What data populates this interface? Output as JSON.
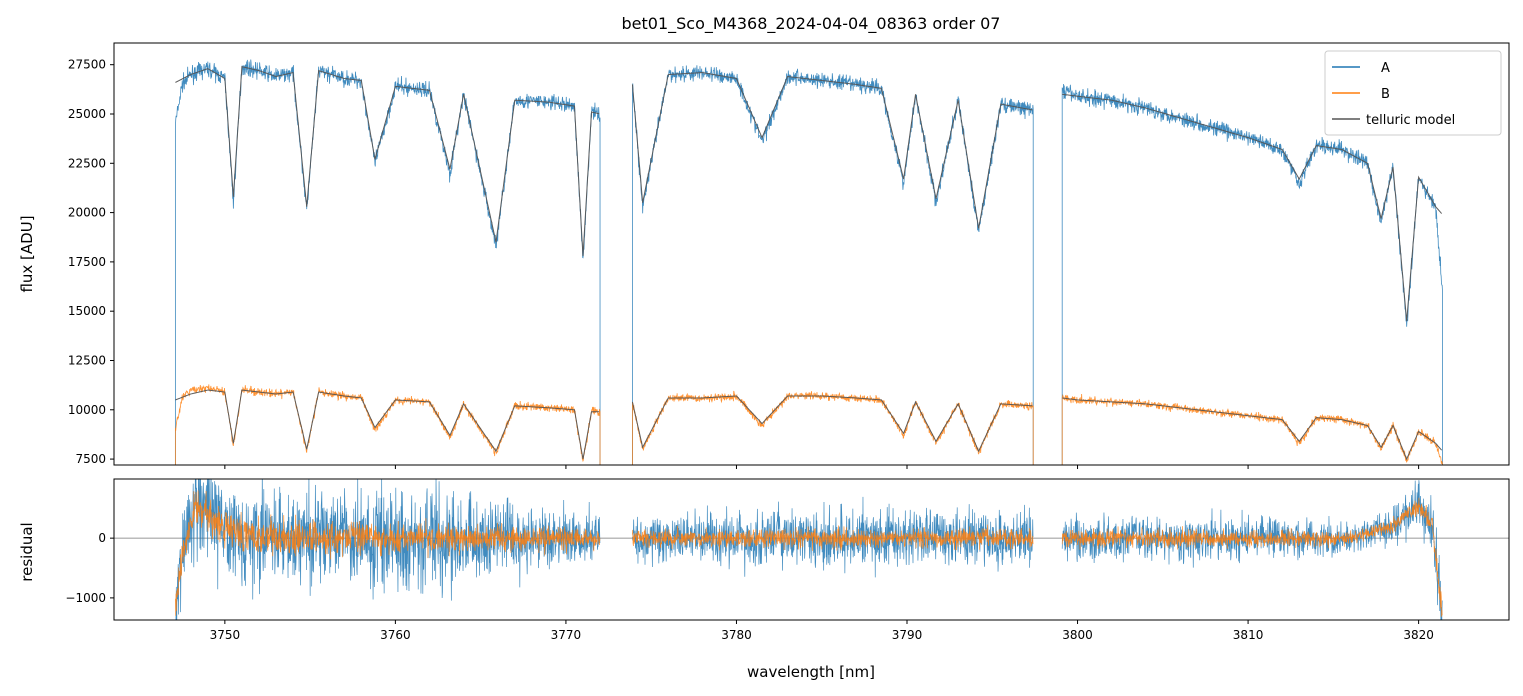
{
  "chart_data": [
    {
      "type": "line",
      "title": "bet01_Sco_M4368_2024-04-04_08363  order 07",
      "ylabel": "flux [ADU]",
      "ylim": [
        7200,
        28600
      ],
      "xlim": [
        3743.5,
        3825.3
      ],
      "yticks": [
        7500,
        10000,
        12500,
        15000,
        17500,
        20000,
        22500,
        25000,
        27500
      ],
      "ytick_labels": [
        "7500",
        "10000",
        "12500",
        "15000",
        "17500",
        "20000",
        "22500",
        "25000",
        "27500"
      ],
      "legend": {
        "placement": "top-right",
        "entries": [
          "A",
          "B",
          "telluric model"
        ]
      },
      "segments": [
        [
          3747.1,
          3772.0
        ],
        [
          3773.9,
          3797.4
        ],
        [
          3799.1,
          3821.4
        ]
      ],
      "series": [
        {
          "name": "A",
          "color": "#1f77b4",
          "x": [
            3747.1,
            3747.5,
            3748.0,
            3749.0,
            3750.0,
            3750.5,
            3751.0,
            3752.0,
            3753.0,
            3754.0,
            3754.8,
            3755.5,
            3757.0,
            3758.0,
            3758.8,
            3760.0,
            3762.0,
            3763.2,
            3764.0,
            3765.9,
            3767.0,
            3769.0,
            3770.5,
            3771.0,
            3771.5,
            3772.0,
            3773.9,
            3774.5,
            3776.0,
            3778.0,
            3780.0,
            3781.5,
            3783.0,
            3785.0,
            3787.0,
            3788.5,
            3789.8,
            3790.5,
            3791.7,
            3793.0,
            3794.2,
            3795.5,
            3797.4,
            3799.1,
            3800.0,
            3802.0,
            3804.0,
            3806.0,
            3808.0,
            3810.0,
            3812.0,
            3813.0,
            3814.0,
            3815.5,
            3817.0,
            3817.8,
            3818.5,
            3819.3,
            3820.0,
            3821.0,
            3821.4
          ],
          "y": [
            24500,
            26500,
            27000,
            27300,
            26800,
            20500,
            27400,
            27200,
            26900,
            27100,
            20100,
            27200,
            26800,
            26700,
            22500,
            26400,
            26200,
            22000,
            26000,
            18300,
            25700,
            25600,
            25400,
            17600,
            25100,
            25000,
            26500,
            20300,
            27000,
            27100,
            26800,
            23600,
            26900,
            26700,
            26500,
            26300,
            21500,
            26000,
            20500,
            25700,
            19000,
            25500,
            25200,
            26200,
            25900,
            25700,
            25300,
            24800,
            24300,
            23800,
            23200,
            21500,
            23400,
            23200,
            22500,
            19500,
            22300,
            14300,
            21800,
            20200,
            16000
          ]
        },
        {
          "name": "B",
          "color": "#ff7f0e",
          "x": [
            3747.1,
            3747.5,
            3748.0,
            3749.0,
            3750.0,
            3750.5,
            3751.0,
            3752.0,
            3753.0,
            3754.0,
            3754.8,
            3755.5,
            3757.0,
            3758.0,
            3758.8,
            3760.0,
            3762.0,
            3763.2,
            3764.0,
            3765.9,
            3767.0,
            3769.0,
            3770.5,
            3771.0,
            3771.5,
            3772.0,
            3773.9,
            3774.5,
            3776.0,
            3778.0,
            3780.0,
            3781.5,
            3783.0,
            3785.0,
            3787.0,
            3788.5,
            3789.8,
            3790.5,
            3791.7,
            3793.0,
            3794.2,
            3795.5,
            3797.4,
            3799.1,
            3800.0,
            3802.0,
            3804.0,
            3806.0,
            3808.0,
            3810.0,
            3812.0,
            3813.0,
            3814.0,
            3815.5,
            3817.0,
            3817.8,
            3818.5,
            3819.3,
            3820.0,
            3821.0,
            3821.4
          ],
          "y": [
            9000,
            10600,
            11000,
            11100,
            10900,
            8200,
            11000,
            10900,
            10800,
            10900,
            7900,
            10900,
            10700,
            10600,
            9000,
            10500,
            10400,
            8600,
            10300,
            7800,
            10200,
            10100,
            10000,
            7400,
            9900,
            9900,
            10400,
            8000,
            10600,
            10600,
            10700,
            9200,
            10700,
            10700,
            10600,
            10500,
            8700,
            10400,
            8300,
            10300,
            7800,
            10300,
            10200,
            10600,
            10500,
            10400,
            10300,
            10100,
            9900,
            9700,
            9500,
            8300,
            9600,
            9500,
            9200,
            8000,
            9200,
            7400,
            8900,
            8300,
            7300
          ]
        },
        {
          "name": "telluric model",
          "color": "#555555",
          "x": [
            3747.1,
            3748.0,
            3749.0,
            3750.0,
            3750.5,
            3751.0,
            3752.0,
            3753.0,
            3754.0,
            3754.8,
            3755.5,
            3757.0,
            3758.0,
            3758.8,
            3760.0,
            3762.0,
            3763.2,
            3764.0,
            3765.9,
            3767.0,
            3769.0,
            3770.5,
            3771.0,
            3771.5,
            3772.0,
            3773.9,
            3774.5,
            3776.0,
            3778.0,
            3780.0,
            3781.5,
            3783.0,
            3785.0,
            3787.0,
            3788.5,
            3789.8,
            3790.5,
            3791.7,
            3793.0,
            3794.2,
            3795.5,
            3797.4,
            3799.1,
            3800.0,
            3802.0,
            3804.0,
            3806.0,
            3808.0,
            3810.0,
            3812.0,
            3813.0,
            3814.0,
            3815.5,
            3817.0,
            3817.8,
            3818.5,
            3819.3,
            3820.0,
            3821.0,
            3821.4
          ],
          "y": [
            26600,
            27000,
            27300,
            26800,
            20800,
            27400,
            27200,
            26900,
            27100,
            20300,
            27200,
            26800,
            26700,
            22700,
            26400,
            26200,
            22200,
            26000,
            18500,
            25700,
            25600,
            25400,
            17800,
            25100,
            25000,
            26500,
            20500,
            27000,
            27100,
            26800,
            23800,
            26900,
            26700,
            26500,
            26300,
            21700,
            26000,
            20700,
            25700,
            19200,
            25500,
            25200,
            26000,
            25900,
            25700,
            25300,
            24800,
            24300,
            23800,
            23200,
            21700,
            23400,
            23200,
            22500,
            19700,
            22300,
            14500,
            21800,
            20300,
            19900
          ]
        },
        {
          "name": "",
          "color": "#555555",
          "x": [
            3747.1,
            3748.0,
            3749.0,
            3750.0,
            3750.5,
            3751.0,
            3752.0,
            3753.0,
            3754.0,
            3754.8,
            3755.5,
            3757.0,
            3758.0,
            3758.8,
            3760.0,
            3762.0,
            3763.2,
            3764.0,
            3765.9,
            3767.0,
            3769.0,
            3770.5,
            3771.0,
            3771.5,
            3772.0,
            3773.9,
            3774.5,
            3776.0,
            3778.0,
            3780.0,
            3781.5,
            3783.0,
            3785.0,
            3787.0,
            3788.5,
            3789.8,
            3790.5,
            3791.7,
            3793.0,
            3794.2,
            3795.5,
            3797.4,
            3799.1,
            3800.0,
            3802.0,
            3804.0,
            3806.0,
            3808.0,
            3810.0,
            3812.0,
            3813.0,
            3814.0,
            3815.5,
            3817.0,
            3817.8,
            3818.5,
            3819.3,
            3820.0,
            3821.0,
            3821.4
          ],
          "y": [
            10500,
            10800,
            11000,
            10900,
            8300,
            11000,
            10900,
            10800,
            10900,
            8000,
            10900,
            10700,
            10600,
            9100,
            10500,
            10400,
            8700,
            10300,
            7900,
            10200,
            10100,
            10000,
            7500,
            9900,
            9900,
            10400,
            8100,
            10600,
            10600,
            10700,
            9300,
            10700,
            10700,
            10600,
            10500,
            8800,
            10400,
            8400,
            10300,
            7900,
            10300,
            10200,
            10600,
            10500,
            10400,
            10300,
            10100,
            9900,
            9700,
            9500,
            8400,
            9600,
            9500,
            9200,
            8100,
            9200,
            7500,
            8900,
            8300,
            7900
          ]
        }
      ]
    },
    {
      "type": "line",
      "ylabel": "residual",
      "xlabel": "wavelength [nm]",
      "ylim": [
        -1370,
        990
      ],
      "xlim": [
        3743.5,
        3825.3
      ],
      "yticks": [
        -1000,
        0
      ],
      "ytick_labels": [
        "−1000",
        "0"
      ],
      "xticks": [
        3750,
        3760,
        3770,
        3780,
        3790,
        3800,
        3810,
        3820
      ],
      "xtick_labels": [
        "3750",
        "3760",
        "3770",
        "3780",
        "3790",
        "3800",
        "3810",
        "3820"
      ],
      "zero_line": 0,
      "series": [
        {
          "name": "A",
          "color": "#1f77b4",
          "envelope_x": [
            3747.1,
            3748.0,
            3750.0,
            3755.0,
            3760.0,
            3765.0,
            3768.0,
            3772.0,
            3773.9,
            3780.0,
            3790.0,
            3797.4,
            3799.1,
            3805.0,
            3812.0,
            3817.0,
            3819.5,
            3820.5,
            3821.4
          ],
          "envelope_amp": [
            1300,
            1000,
            1000,
            1000,
            950,
            900,
            650,
            550,
            450,
            600,
            600,
            550,
            450,
            500,
            450,
            300,
            450,
            500,
            700
          ],
          "trend_x": [
            3747.1,
            3747.5,
            3748.3,
            3750.0,
            3752.0,
            3760.0,
            3772.0,
            3773.9,
            3797.4,
            3799.1,
            3816.0,
            3818.5,
            3820.0,
            3820.8,
            3821.4
          ],
          "trend_y": [
            -1200,
            -300,
            600,
            150,
            0,
            0,
            0,
            0,
            0,
            0,
            0,
            200,
            600,
            200,
            -1300
          ]
        },
        {
          "name": "B",
          "color": "#ff7f0e",
          "envelope_x": [
            3747.1,
            3748.0,
            3750.0,
            3755.0,
            3760.0,
            3765.0,
            3768.0,
            3772.0,
            3773.9,
            3780.0,
            3790.0,
            3797.4,
            3799.1,
            3805.0,
            3812.0,
            3817.0,
            3819.5,
            3820.5,
            3821.4
          ],
          "envelope_amp": [
            400,
            400,
            400,
            350,
            330,
            300,
            250,
            200,
            180,
            200,
            200,
            200,
            180,
            200,
            180,
            150,
            180,
            220,
            300
          ],
          "trend_x": [
            3747.1,
            3747.5,
            3748.3,
            3750.0,
            3752.0,
            3760.0,
            3772.0,
            3773.9,
            3797.4,
            3799.1,
            3816.0,
            3818.5,
            3820.0,
            3820.8,
            3821.4
          ],
          "trend_y": [
            -1200,
            -300,
            550,
            150,
            0,
            0,
            0,
            0,
            0,
            0,
            0,
            200,
            550,
            200,
            -1300
          ]
        }
      ]
    }
  ]
}
